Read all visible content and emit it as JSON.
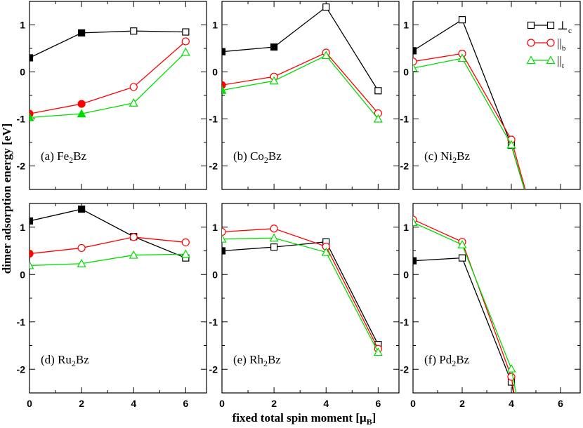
{
  "figure": {
    "ylabel": "dimer adsorption energy [eV]",
    "xlabel_main": "fixed total spin moment [μ",
    "xlabel_sub": "B",
    "xlabel_end": "]"
  },
  "chart_data": {
    "type": "line",
    "x_ticks": [
      0,
      2,
      4,
      6
    ],
    "y_ticks": [
      -2,
      -1,
      0,
      1
    ],
    "xlim": [
      0,
      6.8
    ],
    "ylim": [
      -2.5,
      1.5
    ],
    "series_styles": [
      {
        "key": "perp",
        "marker": "square",
        "color": "#000000"
      },
      {
        "key": "par_b",
        "marker": "circle",
        "color": "#ff0000"
      },
      {
        "key": "par_t",
        "marker": "triangle",
        "color": "#00dd00"
      }
    ],
    "legend": {
      "placement": "top-right of panel (c)",
      "entries": [
        {
          "key": "perp",
          "main": "⊥",
          "sub": "c"
        },
        {
          "key": "par_b",
          "main": "||",
          "sub": "b"
        },
        {
          "key": "par_t",
          "main": "||",
          "sub": "t"
        }
      ]
    },
    "panels": [
      {
        "id": "a",
        "label_pre": "(a) Fe",
        "label_sub": "2",
        "label_post": "Bz",
        "series": [
          {
            "key": "perp",
            "x": [
              0,
              2,
              4,
              6
            ],
            "y": [
              0.3,
              0.83,
              0.87,
              0.85
            ],
            "filled": [
              true,
              true,
              false,
              false
            ]
          },
          {
            "key": "par_b",
            "x": [
              0,
              2,
              4,
              6
            ],
            "y": [
              -0.89,
              -0.68,
              -0.32,
              0.65
            ],
            "filled": [
              true,
              true,
              false,
              false
            ]
          },
          {
            "key": "par_t",
            "x": [
              0,
              2,
              4,
              6
            ],
            "y": [
              -0.97,
              -0.89,
              -0.66,
              0.42
            ],
            "filled": [
              true,
              true,
              false,
              false
            ]
          }
        ]
      },
      {
        "id": "b",
        "label_pre": "(b) Co",
        "label_sub": "2",
        "label_post": "Bz",
        "series": [
          {
            "key": "perp",
            "x": [
              0,
              2,
              4,
              6
            ],
            "y": [
              0.43,
              0.53,
              1.38,
              -0.4
            ],
            "filled": [
              true,
              true,
              false,
              false
            ]
          },
          {
            "key": "par_b",
            "x": [
              0,
              2,
              4,
              6
            ],
            "y": [
              -0.28,
              -0.1,
              0.41,
              -0.88
            ],
            "filled": [
              true,
              false,
              false,
              false
            ]
          },
          {
            "key": "par_t",
            "x": [
              0,
              2,
              4,
              6
            ],
            "y": [
              -0.39,
              -0.19,
              0.35,
              -1.0
            ],
            "filled": [
              true,
              false,
              false,
              false
            ]
          }
        ]
      },
      {
        "id": "c",
        "label_pre": "(c) Ni",
        "label_sub": "2",
        "label_post": "Bz",
        "series": [
          {
            "key": "perp",
            "x": [
              0,
              2,
              4,
              5.1
            ],
            "y": [
              0.45,
              1.11,
              -1.56,
              -3.5
            ],
            "filled": [
              true,
              false,
              false,
              false
            ]
          },
          {
            "key": "par_b",
            "x": [
              0,
              2,
              4,
              5.1
            ],
            "y": [
              0.22,
              0.39,
              -1.44,
              -3.5
            ],
            "filled": [
              false,
              false,
              false,
              false
            ]
          },
          {
            "key": "par_t",
            "x": [
              0,
              2,
              4,
              5.1
            ],
            "y": [
              0.08,
              0.29,
              -1.55,
              -3.5
            ],
            "filled": [
              false,
              false,
              false,
              false
            ]
          }
        ]
      },
      {
        "id": "d",
        "label_pre": "(d) Ru",
        "label_sub": "2",
        "label_post": "Bz",
        "series": [
          {
            "key": "perp",
            "x": [
              0,
              2,
              4,
              6
            ],
            "y": [
              1.13,
              1.38,
              0.8,
              0.35
            ],
            "filled": [
              true,
              true,
              false,
              false
            ]
          },
          {
            "key": "par_b",
            "x": [
              0,
              2,
              4,
              6
            ],
            "y": [
              0.44,
              0.56,
              0.79,
              0.68
            ],
            "filled": [
              true,
              false,
              false,
              false
            ]
          },
          {
            "key": "par_t",
            "x": [
              0,
              2,
              4,
              6
            ],
            "y": [
              0.19,
              0.23,
              0.41,
              0.43
            ],
            "filled": [
              false,
              false,
              false,
              false
            ]
          }
        ]
      },
      {
        "id": "e",
        "label_pre": "(e) Rh",
        "label_sub": "2",
        "label_post": "Bz",
        "series": [
          {
            "key": "perp",
            "x": [
              0,
              2,
              4,
              6
            ],
            "y": [
              0.5,
              0.58,
              0.69,
              -1.48
            ],
            "filled": [
              true,
              false,
              false,
              false
            ]
          },
          {
            "key": "par_b",
            "x": [
              0,
              2,
              4,
              6
            ],
            "y": [
              0.9,
              0.97,
              0.59,
              -1.57
            ],
            "filled": [
              false,
              false,
              false,
              false
            ]
          },
          {
            "key": "par_t",
            "x": [
              0,
              2,
              4,
              6
            ],
            "y": [
              0.75,
              0.77,
              0.47,
              -1.64
            ],
            "filled": [
              false,
              false,
              false,
              false
            ]
          }
        ]
      },
      {
        "id": "f",
        "label_pre": "(f) Pd",
        "label_sub": "2",
        "label_post": "Bz",
        "series": [
          {
            "key": "perp",
            "x": [
              0,
              2,
              4,
              4.2
            ],
            "y": [
              0.29,
              0.35,
              -2.27,
              -2.8
            ],
            "filled": [
              true,
              false,
              false,
              false
            ]
          },
          {
            "key": "par_b",
            "x": [
              0,
              2,
              4,
              4.2
            ],
            "y": [
              1.16,
              0.69,
              -2.16,
              -2.8
            ],
            "filled": [
              false,
              false,
              false,
              false
            ]
          },
          {
            "key": "par_t",
            "x": [
              0,
              2,
              4,
              4.3
            ],
            "y": [
              1.1,
              0.63,
              -1.99,
              -2.8
            ],
            "filled": [
              false,
              false,
              false,
              false
            ]
          }
        ]
      }
    ]
  }
}
